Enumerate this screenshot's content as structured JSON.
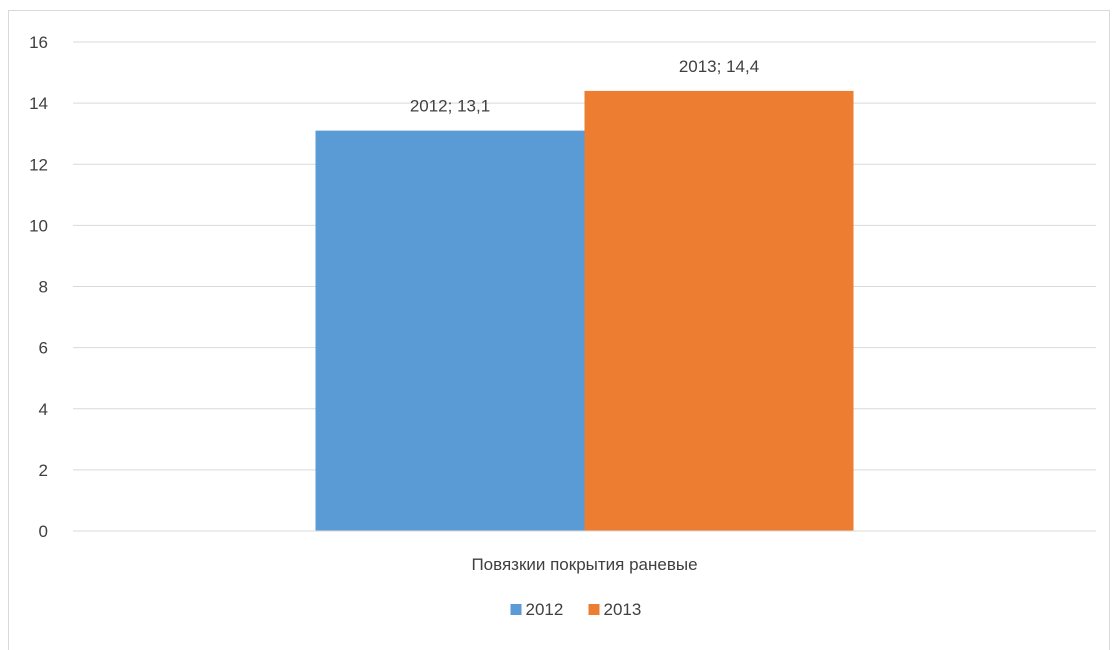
{
  "chart_data": {
    "type": "bar",
    "categories": [
      "Повязкии покрытия раневые"
    ],
    "series": [
      {
        "name": "2012",
        "values": [
          13.1
        ],
        "color": "#5b9bd5",
        "label": "2012; 13,1"
      },
      {
        "name": "2013",
        "values": [
          14.4
        ],
        "color": "#ed7d31",
        "label": "2013; 14,4"
      }
    ],
    "y_ticks": [
      "0",
      "2",
      "4",
      "6",
      "8",
      "10",
      "12",
      "14",
      "16"
    ],
    "ylim": [
      0,
      16
    ],
    "grid": true,
    "legend": "bottom",
    "legend_labels": [
      "2012",
      "2013"
    ],
    "title": "",
    "xlabel": "",
    "ylabel": ""
  }
}
